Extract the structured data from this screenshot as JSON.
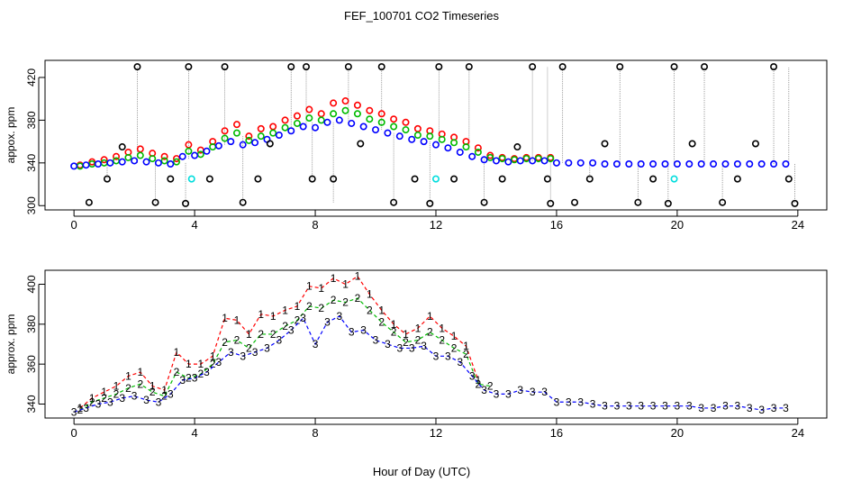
{
  "title": "FEF_100701  CO2 Timeseries",
  "xlabel": "Hour of Day (UTC)",
  "chart_data": [
    {
      "type": "scatter",
      "ylabel": "appox. ppm",
      "xlim": [
        -0.96,
        24.96
      ],
      "ylim": [
        296,
        436
      ],
      "xticks": [
        0,
        4,
        8,
        12,
        16,
        20,
        24
      ],
      "yticks": [
        300,
        340,
        380,
        420
      ],
      "tick_labels_y": [
        "300",
        "340",
        "380",
        "420"
      ],
      "tick_labels_x": [
        "0",
        "4",
        "8",
        "12",
        "16",
        "20",
        "24"
      ],
      "grid": false,
      "colors": {
        "s1": "#ff0000",
        "s2": "#00bb00",
        "s3": "#0000ff",
        "s4": "#000000",
        "s5": "#00dddd"
      },
      "series": [
        {
          "key": "s1",
          "marker": "circle",
          "x": [
            0.2,
            0.6,
            1.0,
            1.4,
            1.8,
            2.2,
            2.6,
            3.0,
            3.4,
            3.8,
            4.2,
            4.6,
            5.0,
            5.4,
            5.8,
            6.2,
            6.6,
            7.0,
            7.4,
            7.8,
            8.2,
            8.6,
            9.0,
            9.4,
            9.8,
            10.2,
            10.6,
            11.0,
            11.4,
            11.8,
            12.2,
            12.6,
            13.0,
            13.4,
            13.8,
            14.2,
            14.6,
            15.0,
            15.4,
            15.8
          ],
          "y": [
            338,
            341,
            343,
            346,
            350,
            353,
            349,
            346,
            344,
            357,
            352,
            360,
            370,
            376,
            365,
            372,
            374,
            380,
            384,
            390,
            386,
            396,
            398,
            394,
            389,
            386,
            381,
            378,
            372,
            370,
            367,
            364,
            360,
            354,
            347,
            345,
            344,
            345,
            345,
            345
          ]
        },
        {
          "key": "s2",
          "marker": "circle",
          "x": [
            0.2,
            0.6,
            1.0,
            1.4,
            1.8,
            2.2,
            2.6,
            3.0,
            3.4,
            3.8,
            4.2,
            4.6,
            5.0,
            5.4,
            5.8,
            6.2,
            6.6,
            7.0,
            7.4,
            7.8,
            8.2,
            8.6,
            9.0,
            9.4,
            9.8,
            10.2,
            10.6,
            11.0,
            11.4,
            11.8,
            12.2,
            12.6,
            13.0,
            13.4,
            13.8,
            14.2,
            14.6,
            15.0,
            15.4,
            15.8
          ],
          "y": [
            337,
            339,
            340,
            342,
            345,
            347,
            344,
            342,
            341,
            351,
            348,
            355,
            363,
            368,
            361,
            365,
            368,
            373,
            377,
            382,
            380,
            386,
            389,
            386,
            381,
            378,
            374,
            371,
            366,
            365,
            362,
            359,
            355,
            350,
            345,
            344,
            343,
            344,
            344,
            344
          ]
        },
        {
          "key": "s3",
          "marker": "circle",
          "x": [
            0.0,
            0.4,
            0.8,
            1.2,
            1.6,
            2.0,
            2.4,
            2.8,
            3.2,
            3.6,
            4.0,
            4.4,
            4.8,
            5.2,
            5.6,
            6.0,
            6.4,
            6.8,
            7.2,
            7.6,
            8.0,
            8.4,
            8.8,
            9.2,
            9.6,
            10.0,
            10.4,
            10.8,
            11.2,
            11.6,
            12.0,
            12.4,
            12.8,
            13.2,
            13.6,
            14.0,
            14.4,
            14.8,
            15.2,
            15.6,
            16.0,
            16.4,
            16.8,
            17.2,
            17.6,
            18.0,
            18.4,
            18.8,
            19.2,
            19.6,
            20.0,
            20.4,
            20.8,
            21.2,
            21.6,
            22.0,
            22.4,
            22.8,
            23.2,
            23.6
          ],
          "y": [
            337,
            338,
            339,
            340,
            341,
            342,
            341,
            340,
            339,
            346,
            347,
            351,
            356,
            360,
            357,
            359,
            362,
            366,
            370,
            374,
            373,
            378,
            380,
            377,
            374,
            371,
            368,
            365,
            362,
            360,
            357,
            354,
            350,
            346,
            343,
            342,
            341,
            342,
            342,
            342,
            340,
            340,
            340,
            340,
            339,
            339,
            339,
            339,
            339,
            339,
            339,
            339,
            339,
            339,
            339,
            339,
            339,
            339,
            339,
            339
          ]
        },
        {
          "key": "s4",
          "marker": "circle",
          "x": [
            0.5,
            1.1,
            1.6,
            2.1,
            2.7,
            3.2,
            3.7,
            3.8,
            4.5,
            5.0,
            5.6,
            6.1,
            6.5,
            7.2,
            7.7,
            7.9,
            8.6,
            9.1,
            9.5,
            10.2,
            10.6,
            11.3,
            11.8,
            12.1,
            12.6,
            13.1,
            13.6,
            14.2,
            14.7,
            15.2,
            15.7,
            15.8,
            16.2,
            16.6,
            17.1,
            17.6,
            18.1,
            18.7,
            19.2,
            19.7,
            19.9,
            20.5,
            20.9,
            21.5,
            22.0,
            22.6,
            23.2,
            23.7,
            23.9
          ],
          "y": [
            303,
            325,
            355,
            430,
            303,
            325,
            302,
            430,
            325,
            430,
            303,
            325,
            358,
            430,
            430,
            325,
            325,
            430,
            358,
            430,
            303,
            325,
            302,
            430,
            325,
            430,
            303,
            325,
            355,
            430,
            325,
            302,
            430,
            303,
            325,
            358,
            430,
            303,
            325,
            302,
            430,
            358,
            430,
            303,
            325,
            358,
            430,
            325,
            302
          ]
        },
        {
          "key": "s5",
          "marker": "circle",
          "x": [
            3.9,
            12.0,
            19.9
          ],
          "y": [
            325,
            325,
            325
          ]
        }
      ],
      "spike_lines": {
        "x": [
          1.1,
          2.1,
          2.7,
          3.7,
          3.8,
          5.0,
          5.6,
          7.2,
          7.7,
          7.9,
          8.6,
          9.1,
          10.2,
          10.6,
          11.8,
          12.1,
          13.1,
          13.6,
          15.2,
          15.7,
          15.8,
          16.2,
          17.1,
          18.1,
          18.7,
          19.7,
          19.9,
          20.9,
          21.5,
          23.2,
          23.7,
          23.9
        ],
        "y_from": [
          340,
          340,
          341,
          340,
          344,
          357,
          365,
          372,
          375,
          378,
          378,
          378,
          371,
          368,
          360,
          357,
          352,
          346,
          342,
          342,
          342,
          340,
          340,
          339,
          339,
          339,
          339,
          339,
          339,
          339,
          339,
          339
        ],
        "y_to": [
          325,
          430,
          303,
          302,
          430,
          430,
          303,
          430,
          430,
          325,
          303,
          430,
          430,
          303,
          302,
          430,
          430,
          303,
          430,
          430,
          302,
          430,
          325,
          430,
          303,
          302,
          430,
          430,
          303,
          430,
          430,
          302
        ]
      }
    },
    {
      "type": "line",
      "ylabel": "approx. ppm",
      "xlim": [
        -0.96,
        24.96
      ],
      "ylim": [
        333,
        407
      ],
      "xticks": [
        0,
        4,
        8,
        12,
        16,
        20,
        24
      ],
      "yticks": [
        340,
        360,
        380,
        400
      ],
      "tick_labels_y": [
        "340",
        "360",
        "380",
        "400"
      ],
      "tick_labels_x": [
        "0",
        "4",
        "8",
        "12",
        "16",
        "20",
        "24"
      ],
      "grid": false,
      "series": [
        {
          "key": "s1",
          "marker_text": "1",
          "color": "#ff0000",
          "x": [
            0.2,
            0.6,
            1.0,
            1.4,
            1.8,
            2.2,
            2.6,
            3.0,
            3.4,
            3.8,
            4.2,
            4.6,
            5.0,
            5.4,
            5.8,
            6.2,
            6.6,
            7.0,
            7.4,
            7.8,
            8.2,
            8.6,
            9.0,
            9.4,
            9.8,
            10.2,
            10.6,
            11.0,
            11.4,
            11.8,
            12.2,
            12.6,
            13.0,
            13.4
          ],
          "y": [
            338,
            343,
            346,
            349,
            354,
            356,
            349,
            347,
            366,
            360,
            360,
            364,
            383,
            382,
            375,
            385,
            384,
            387,
            389,
            399,
            398,
            403,
            400,
            404,
            395,
            387,
            380,
            375,
            378,
            384,
            378,
            374,
            369,
            352
          ]
        },
        {
          "key": "s2",
          "marker_text": "2",
          "color": "#00bb00",
          "x": [
            0.2,
            0.6,
            1.0,
            1.4,
            1.8,
            2.2,
            2.6,
            3.0,
            3.4,
            3.8,
            4.2,
            4.6,
            5.0,
            5.4,
            5.8,
            6.2,
            6.6,
            7.0,
            7.4,
            7.8,
            8.2,
            8.6,
            9.0,
            9.4,
            9.8,
            10.2,
            10.6,
            11.0,
            11.4,
            11.8,
            12.2,
            12.6,
            13.0,
            13.4,
            13.8
          ],
          "y": [
            337,
            341,
            343,
            345,
            348,
            350,
            346,
            344,
            356,
            353,
            355,
            360,
            371,
            372,
            368,
            375,
            375,
            379,
            382,
            389,
            388,
            392,
            391,
            393,
            387,
            381,
            376,
            371,
            372,
            376,
            372,
            368,
            365,
            350,
            349
          ]
        },
        {
          "key": "s3",
          "marker_text": "3",
          "color": "#0000ff",
          "x": [
            0.0,
            0.4,
            0.8,
            1.2,
            1.6,
            2.0,
            2.4,
            2.8,
            3.2,
            3.6,
            4.0,
            4.4,
            4.8,
            5.2,
            5.6,
            6.0,
            6.4,
            6.8,
            7.2,
            7.6,
            8.0,
            8.4,
            8.8,
            9.2,
            9.6,
            10.0,
            10.4,
            10.8,
            11.2,
            11.6,
            12.0,
            12.4,
            12.8,
            13.2,
            13.6,
            14.0,
            14.4,
            14.8,
            15.2,
            15.6,
            16.0,
            16.4,
            16.8,
            17.2,
            17.6,
            18.0,
            18.4,
            18.8,
            19.2,
            19.6,
            20.0,
            20.4,
            20.8,
            21.2,
            21.6,
            22.0,
            22.4,
            22.8,
            23.2,
            23.6
          ],
          "y": [
            336,
            338,
            340,
            341,
            343,
            344,
            342,
            341,
            345,
            352,
            353,
            356,
            361,
            366,
            364,
            366,
            368,
            372,
            377,
            383,
            370,
            381,
            384,
            376,
            377,
            372,
            370,
            368,
            368,
            369,
            364,
            364,
            361,
            354,
            347,
            345,
            345,
            347,
            346,
            346,
            341,
            341,
            341,
            340,
            339,
            339,
            339,
            339,
            339,
            339,
            339,
            339,
            338,
            338,
            339,
            339,
            338,
            337,
            338,
            338
          ]
        }
      ]
    }
  ]
}
